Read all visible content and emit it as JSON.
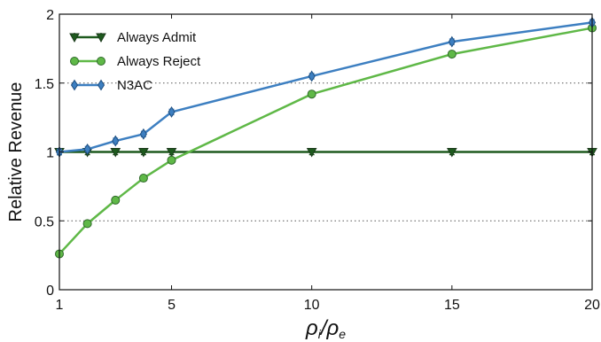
{
  "chart_data": {
    "type": "line",
    "xlabel": "ρi/ρe",
    "xlabel_parts": {
      "main1": "ρ",
      "sub1": "i",
      "slash": "/",
      "main2": "ρ",
      "sub2": "e"
    },
    "ylabel": "Relative Revenue",
    "xlim": [
      1,
      20
    ],
    "ylim": [
      0,
      2
    ],
    "xticks": [
      1,
      5,
      10,
      15,
      20
    ],
    "yticks": [
      0,
      0.5,
      1,
      1.5,
      2
    ],
    "x_tick_labels": [
      "1",
      "5",
      "10",
      "15",
      "20"
    ],
    "y_tick_labels": [
      "0",
      "0.5",
      "1",
      "1.5",
      "2"
    ],
    "grid": "y-dotted",
    "legend_position": "top-left",
    "series": [
      {
        "name": "Always Admit",
        "color": "#1e5a1e",
        "marker": "triangle-down",
        "x": [
          1,
          2,
          3,
          4,
          5,
          10,
          15,
          20
        ],
        "y": [
          1.0,
          1.0,
          1.0,
          1.0,
          1.0,
          1.0,
          1.0,
          1.0
        ],
        "err": [
          0.02,
          0.02,
          0.02,
          0.02,
          0.02,
          0.02,
          0.02,
          0.02
        ]
      },
      {
        "name": "Always Reject",
        "color": "#5fb847",
        "marker": "circle",
        "x": [
          1,
          2,
          3,
          4,
          5,
          10,
          15,
          20
        ],
        "y": [
          0.26,
          0.48,
          0.65,
          0.81,
          0.94,
          1.42,
          1.71,
          1.9
        ],
        "err": [
          0,
          0,
          0,
          0,
          0,
          0,
          0,
          0
        ]
      },
      {
        "name": "N3AC",
        "color": "#3d7fc1",
        "marker": "diamond",
        "x": [
          1,
          2,
          3,
          4,
          5,
          10,
          15,
          20
        ],
        "y": [
          1.0,
          1.02,
          1.08,
          1.13,
          1.29,
          1.55,
          1.8,
          1.94
        ],
        "err": [
          0.02,
          0.02,
          0.02,
          0.02,
          0.02,
          0.02,
          0.02,
          0.02
        ]
      }
    ]
  }
}
